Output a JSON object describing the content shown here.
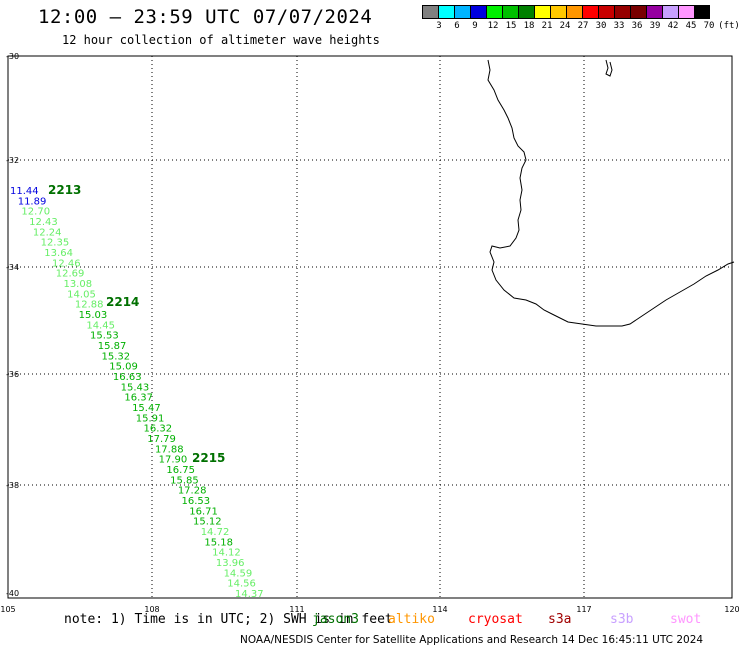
{
  "header": {
    "title": "12:00 – 23:59 UTC 07/07/2024",
    "subtitle": "12 hour collection of altimeter wave heights"
  },
  "colorbar": {
    "unit": "(ft)",
    "colors": [
      "#808080",
      "#00ffff",
      "#00b4ff",
      "#0000e0",
      "#00f000",
      "#00c000",
      "#008000",
      "#ffff00",
      "#ffc800",
      "#ff9600",
      "#ff0000",
      "#c80000",
      "#960000",
      "#780000",
      "#9600a0",
      "#c8a0ff",
      "#ff96ff",
      "#000000"
    ],
    "labels": [
      "3",
      "6",
      "9",
      "12",
      "15",
      "18",
      "21",
      "24",
      "27",
      "30",
      "33",
      "36",
      "39",
      "42",
      "45",
      "70"
    ]
  },
  "map": {
    "lat_labels": [
      "-30",
      "-32",
      "-34",
      "-36",
      "-38",
      "-40"
    ],
    "lon_labels": [
      "105",
      "108",
      "111",
      "114",
      "117",
      "120"
    ],
    "grid": true,
    "pass_labels": [
      "2213",
      "2214",
      "2215"
    ],
    "track_values": [
      "11.44",
      "11.89",
      "12.70",
      "12.43",
      "12.24",
      "12.35",
      "13.64",
      "12.46",
      "12.69",
      "13.08",
      "14.05",
      "12.88",
      "15.03",
      "14.45",
      "15.53",
      "15.87",
      "15.32",
      "15.09",
      "16.63",
      "15.43",
      "16.37",
      "15.47",
      "15.91",
      "16.32",
      "17.79",
      "17.88",
      "17.90",
      "16.75",
      "15.85",
      "17.28",
      "16.53",
      "16.71",
      "15.12",
      "14.72",
      "15.18",
      "14.12",
      "13.96",
      "14.59",
      "14.56",
      "14.37"
    ],
    "track_colors": [
      "#0000e0",
      "#0000e0",
      "#66ee66",
      "#66ee66",
      "#66ee66",
      "#66ee66",
      "#66ee66",
      "#66ee66",
      "#66ee66",
      "#66ee66",
      "#66ee66",
      "#66ee66",
      "#00b000",
      "#66ee66",
      "#00b000",
      "#00b000",
      "#00b000",
      "#00b000",
      "#00b000",
      "#00b000",
      "#00b000",
      "#00b000",
      "#00b000",
      "#00b000",
      "#00b000",
      "#00b000",
      "#00b000",
      "#00b000",
      "#00b000",
      "#00b000",
      "#00b000",
      "#00b000",
      "#00b000",
      "#66ee66",
      "#00b000",
      "#66ee66",
      "#66ee66",
      "#66ee66",
      "#66ee66",
      "#66ee66"
    ]
  },
  "footer": {
    "note": "note: 1) Time is in UTC; 2) SWH is in feet",
    "satellites": [
      {
        "name": "jason3",
        "color": "#007000"
      },
      {
        "name": "altiko",
        "color": "#ff9600"
      },
      {
        "name": "cryosat",
        "color": "#ff0000"
      },
      {
        "name": "s3a",
        "color": "#a00000"
      },
      {
        "name": "s3b",
        "color": "#c8a0ff"
      },
      {
        "name": "swot",
        "color": "#ff96ff"
      }
    ],
    "credit": "NOAA/NESDIS Center for Satellite Applications and Research   14 Dec 16:45:11 UTC 2024"
  }
}
